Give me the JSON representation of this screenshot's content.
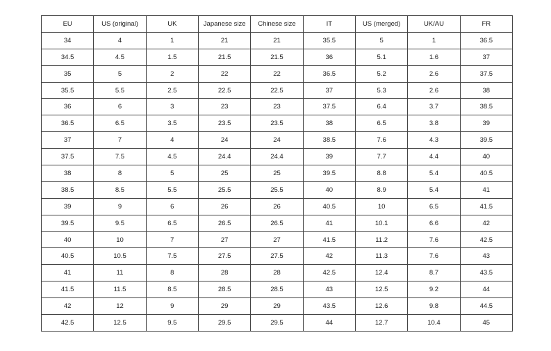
{
  "table": {
    "headers": [
      "EU",
      "US (original)",
      "UK",
      "Japanese size",
      "Chinese size",
      "IT",
      "US (merged)",
      "UK/AU",
      "FR"
    ],
    "rows": [
      [
        "34",
        "4",
        "1",
        "21",
        "21",
        "35.5",
        "5",
        "1",
        "36.5"
      ],
      [
        "34.5",
        "4.5",
        "1.5",
        "21.5",
        "21.5",
        "36",
        "5.1",
        "1.6",
        "37"
      ],
      [
        "35",
        "5",
        "2",
        "22",
        "22",
        "36.5",
        "5.2",
        "2.6",
        "37.5"
      ],
      [
        "35.5",
        "5.5",
        "2.5",
        "22.5",
        "22.5",
        "37",
        "5.3",
        "2.6",
        "38"
      ],
      [
        "36",
        "6",
        "3",
        "23",
        "23",
        "37.5",
        "6.4",
        "3.7",
        "38.5"
      ],
      [
        "36.5",
        "6.5",
        "3.5",
        "23.5",
        "23.5",
        "38",
        "6.5",
        "3.8",
        "39"
      ],
      [
        "37",
        "7",
        "4",
        "24",
        "24",
        "38.5",
        "7.6",
        "4.3",
        "39.5"
      ],
      [
        "37.5",
        "7.5",
        "4.5",
        "24.4",
        "24.4",
        "39",
        "7.7",
        "4.4",
        "40"
      ],
      [
        "38",
        "8",
        "5",
        "25",
        "25",
        "39.5",
        "8.8",
        "5.4",
        "40.5"
      ],
      [
        "38.5",
        "8.5",
        "5.5",
        "25.5",
        "25.5",
        "40",
        "8.9",
        "5.4",
        "41"
      ],
      [
        "39",
        "9",
        "6",
        "26",
        "26",
        "40.5",
        "10",
        "6.5",
        "41.5"
      ],
      [
        "39.5",
        "9.5",
        "6.5",
        "26.5",
        "26.5",
        "41",
        "10.1",
        "6.6",
        "42"
      ],
      [
        "40",
        "10",
        "7",
        "27",
        "27",
        "41.5",
        "11.2",
        "7.6",
        "42.5"
      ],
      [
        "40.5",
        "10.5",
        "7.5",
        "27.5",
        "27.5",
        "42",
        "11.3",
        "7.6",
        "43"
      ],
      [
        "41",
        "11",
        "8",
        "28",
        "28",
        "42.5",
        "12.4",
        "8.7",
        "43.5"
      ],
      [
        "41.5",
        "11.5",
        "8.5",
        "28.5",
        "28.5",
        "43",
        "12.5",
        "9.2",
        "44"
      ],
      [
        "42",
        "12",
        "9",
        "29",
        "29",
        "43.5",
        "12.6",
        "9.8",
        "44.5"
      ],
      [
        "42.5",
        "12.5",
        "9.5",
        "29.5",
        "29.5",
        "44",
        "12.7",
        "10.4",
        "45"
      ]
    ]
  }
}
